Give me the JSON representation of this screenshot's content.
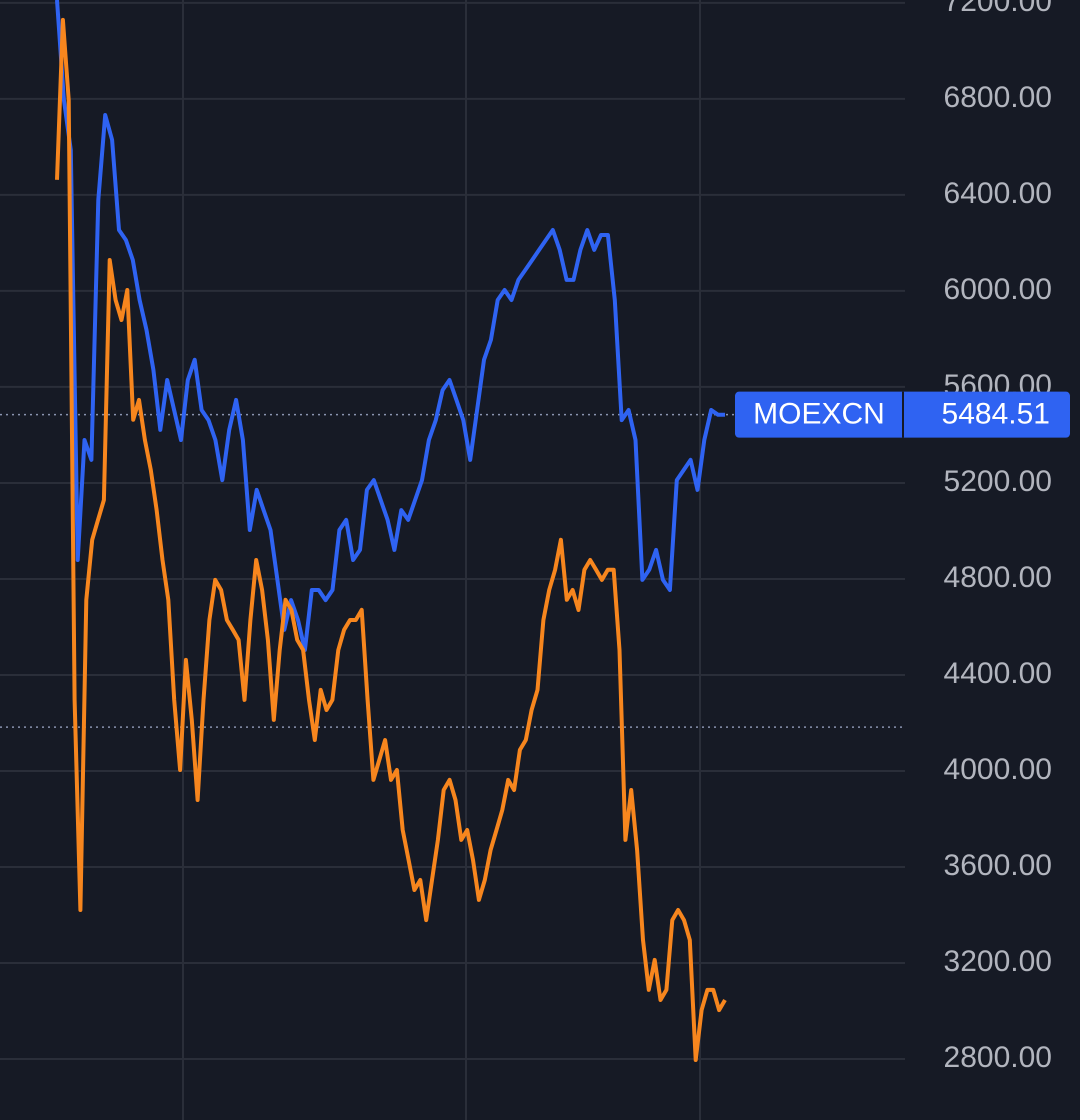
{
  "chart_data": {
    "type": "line",
    "ylim": [
      2546,
      7212
    ],
    "yticks": [
      {
        "value": 2800,
        "label": "2800.00"
      },
      {
        "value": 3200,
        "label": "3200.00"
      },
      {
        "value": 3600,
        "label": "3600.00"
      },
      {
        "value": 4000,
        "label": "4000.00"
      },
      {
        "value": 4400,
        "label": "4400.00"
      },
      {
        "value": 4800,
        "label": "4800.00"
      },
      {
        "value": 5200,
        "label": "5200.00"
      },
      {
        "value": 5600,
        "label": "5600.00"
      },
      {
        "value": 6000,
        "label": "6000.00"
      },
      {
        "value": 6400,
        "label": "6400.00"
      },
      {
        "value": 6800,
        "label": "6800.00"
      },
      {
        "value": 7200,
        "label": "7200.00"
      }
    ],
    "grid": true,
    "series": [
      {
        "name": "MOEXCN",
        "color": "#2f63f2",
        "last_value": 5484.51,
        "values": [
          7212,
          6796,
          6587,
          4879,
          5379,
          5296,
          6379,
          6733,
          6629,
          6254,
          6212,
          6129,
          5962,
          5837,
          5671,
          5421,
          5629,
          5504,
          5379,
          5629,
          5713,
          5504,
          5462,
          5379,
          5212,
          5421,
          5546,
          5379,
          5004,
          5171,
          5087,
          5004,
          4796,
          4588,
          4712,
          4629,
          4504,
          4754,
          4754,
          4712,
          4754,
          5004,
          5046,
          4879,
          4921,
          5171,
          5212,
          5129,
          5046,
          4921,
          5087,
          5046,
          5129,
          5212,
          5379,
          5462,
          5587,
          5629,
          5546,
          5462,
          5296,
          5504,
          5713,
          5796,
          5962,
          6004,
          5962,
          6046,
          6087,
          6129,
          6171,
          6212,
          6254,
          6171,
          6046,
          6046,
          6171,
          6254,
          6171,
          6233,
          6233,
          5962,
          5462,
          5504,
          5379,
          4796,
          4838,
          4921,
          4796,
          4754,
          5212,
          5254,
          5296,
          5171,
          5379,
          5504,
          5484,
          5484
        ]
      },
      {
        "color": "#f7861e",
        "values": [
          6463,
          7129,
          6796,
          4296,
          3421,
          4713,
          4963,
          5046,
          5129,
          6129,
          5962,
          5879,
          6004,
          5463,
          5546,
          5379,
          5254,
          5088,
          4879,
          4713,
          4296,
          4004,
          4463,
          4213,
          3879,
          4296,
          4629,
          4796,
          4754,
          4629,
          4588,
          4546,
          4296,
          4629,
          4879,
          4754,
          4546,
          4213,
          4504,
          4713,
          4671,
          4546,
          4504,
          4296,
          4129,
          4338,
          4254,
          4296,
          4504,
          4588,
          4629,
          4629,
          4671,
          4296,
          3963,
          4046,
          4129,
          3963,
          4004,
          3754,
          3629,
          3504,
          3546,
          3379,
          3546,
          3713,
          3921,
          3963,
          3879,
          3713,
          3754,
          3629,
          3463,
          3546,
          3671,
          3754,
          3838,
          3963,
          3921,
          4088,
          4129,
          4254,
          4338,
          4629,
          4754,
          4838,
          4963,
          4713,
          4754,
          4671,
          4838,
          4879,
          4838,
          4796,
          4838,
          4838,
          4504,
          3713,
          3921,
          3671,
          3296,
          3088,
          3213,
          3046,
          3088,
          3379,
          3421,
          3379,
          3296,
          2796,
          3004,
          3088,
          3088,
          3004,
          3046
        ]
      }
    ],
    "ref_lines": [
      5484.51,
      4183
    ]
  }
}
